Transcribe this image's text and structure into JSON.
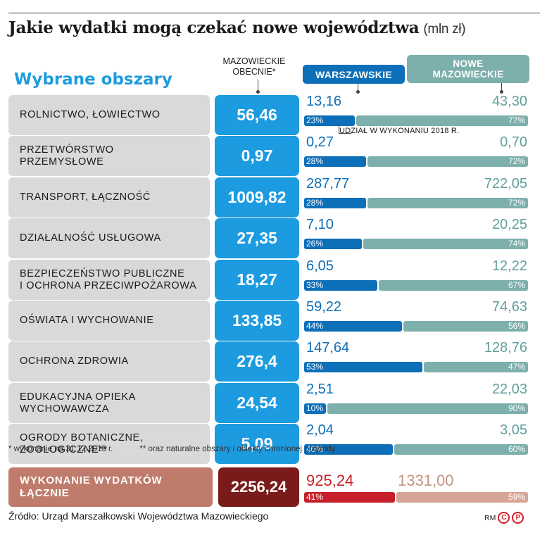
{
  "title": "Jakie wydatki mogą czekać nowe województwa",
  "unit": "(mln zł)",
  "section_title": "Wybrane obszary",
  "headers": {
    "mazowieckie": "MAZOWIECKIE\nOBECNIE*",
    "warszawskie": "WARSZAWSKIE",
    "nowe": "NOWE\nMAZOWIECKIE"
  },
  "udzial_note": "UDZIAŁ W WYKONANIU 2018 R.",
  "colors": {
    "mazowieckie": "#1d9be0",
    "warszawskie": "#0d6fb8",
    "nowe": "#7dafac",
    "total_label": "#bf7b6b",
    "total_value": "#7a1b1b",
    "total_warszawskie": "#c8202a",
    "total_nowe": "#d7a595"
  },
  "chart_data": {
    "type": "bar",
    "title": "Jakie wydatki mogą czekać nowe województwa",
    "categories": [
      "ROLNICTWO, ŁOWIECTWO",
      "PRZETWÓRSTWO\nPRZEMYSŁOWE",
      "TRANSPORT, ŁĄCZNOŚĆ",
      "DZIAŁALNOŚĆ USŁUGOWA",
      "BEZPIECZEŃSTWO PUBLICZNE\nI OCHRONA PRZECIWPOŻAROWA",
      "OŚWIATA I WYCHOWANIE",
      "OCHRONA ZDROWIA",
      "EDUKACYJNA OPIEKA\nWYCHOWAWCZA",
      "OGRODY BOTANICZNE,\nZOOLOGICZNE**"
    ],
    "series": [
      {
        "name": "MAZOWIECKIE OBECNIE*",
        "values": [
          "56,46",
          "0,97",
          "1009,82",
          "27,35",
          "18,27",
          "133,85",
          "276,4",
          "24,54",
          "5,09"
        ]
      },
      {
        "name": "WARSZAWSKIE",
        "values": [
          "13,16",
          "0,27",
          "287,77",
          "7,10",
          "6,05",
          "59,22",
          "147,64",
          "2,51",
          "2,04"
        ],
        "shares": [
          23,
          28,
          28,
          26,
          33,
          44,
          53,
          10,
          40
        ]
      },
      {
        "name": "NOWE MAZOWIECKIE",
        "values": [
          "43,30",
          "0,70",
          "722,05",
          "20,25",
          "12,22",
          "74,63",
          "128,76",
          "22,03",
          "3,05"
        ],
        "shares": [
          77,
          72,
          72,
          74,
          67,
          56,
          47,
          90,
          60
        ]
      }
    ],
    "total": {
      "label": "WYKONANIE WYDATKÓW\nŁĄCZNIE",
      "mazowieckie": "2256,24",
      "warszawskie": "925,24",
      "nowe": "1331,00",
      "share_warszawskie": 41,
      "share_nowe": 59
    }
  },
  "footnotes": [
    "* wykonanie na 31.12.2018 r.",
    "** oraz naturalne obszary i obiekty chronionej przyrody"
  ],
  "source": "Źródło: Urząd Marszałkowski Województwa Mazowieckiego",
  "credit": {
    "initials": "RM",
    "c": "C",
    "p": "P"
  }
}
